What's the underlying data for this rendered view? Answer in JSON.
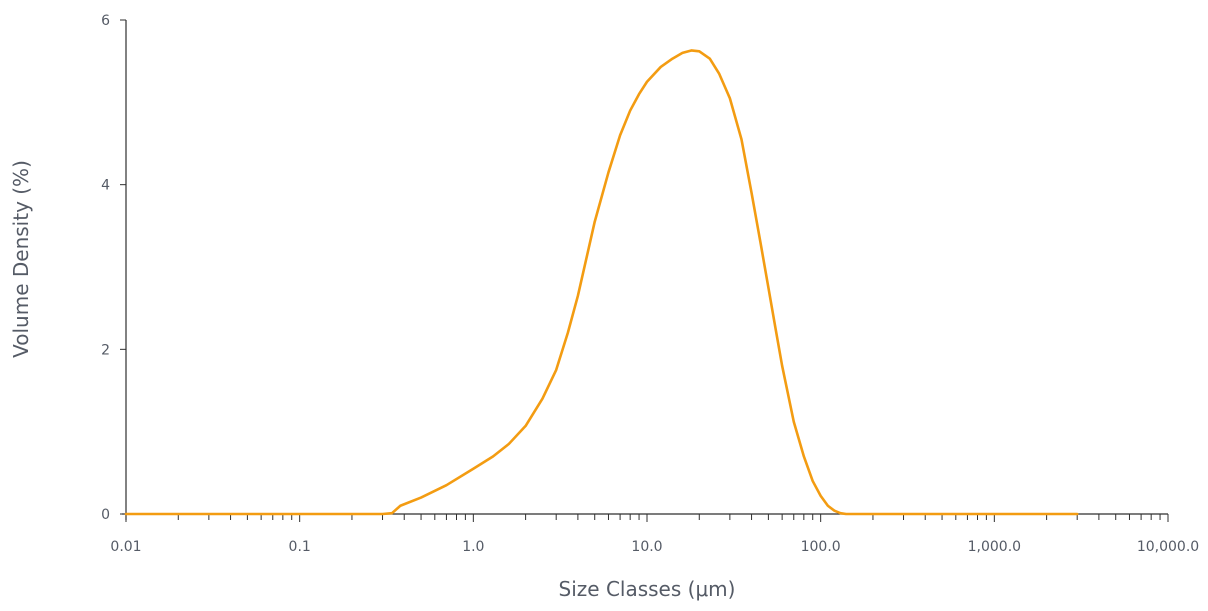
{
  "chart_data": {
    "type": "line",
    "xscale": "log",
    "xlim": [
      0.01,
      10000
    ],
    "ylim": [
      0,
      6
    ],
    "xlabel": "Size Classes (μm)",
    "ylabel": "Volume Density (%)",
    "x_tick_labels": [
      "0.01",
      "0.1",
      "1.0",
      "10.0",
      "100.0",
      "1,000.0",
      "10,000.0"
    ],
    "x_tick_values": [
      0.01,
      0.1,
      1,
      10,
      100,
      1000,
      10000
    ],
    "y_tick_labels": [
      "0",
      "2",
      "4",
      "6"
    ],
    "y_tick_values": [
      0,
      2,
      4,
      6
    ],
    "grid": false,
    "series": [
      {
        "color": "#f39c12",
        "x": [
          0.01,
          0.1,
          0.3,
          0.34,
          0.38,
          0.5,
          0.7,
          1.0,
          1.3,
          1.6,
          2.0,
          2.5,
          3.0,
          3.5,
          4.0,
          5.0,
          6.0,
          7.0,
          8.0,
          9.0,
          10.0,
          12.0,
          14.0,
          16.0,
          18.0,
          20.0,
          23.0,
          26.0,
          30.0,
          35.0,
          40.0,
          45.0,
          50.0,
          55.0,
          60.0,
          70.0,
          80.0,
          90.0,
          100.0,
          110.0,
          120.0,
          130.0,
          140.0,
          200.0,
          1000.0,
          3000.0
        ],
        "y": [
          0,
          0,
          0,
          0.01,
          0.1,
          0.2,
          0.35,
          0.55,
          0.7,
          0.85,
          1.07,
          1.4,
          1.75,
          2.2,
          2.65,
          3.55,
          4.15,
          4.6,
          4.9,
          5.1,
          5.25,
          5.43,
          5.53,
          5.6,
          5.63,
          5.62,
          5.53,
          5.35,
          5.05,
          4.55,
          3.9,
          3.3,
          2.75,
          2.25,
          1.8,
          1.12,
          0.7,
          0.4,
          0.22,
          0.1,
          0.04,
          0.01,
          0,
          0,
          0,
          0
        ]
      }
    ]
  }
}
